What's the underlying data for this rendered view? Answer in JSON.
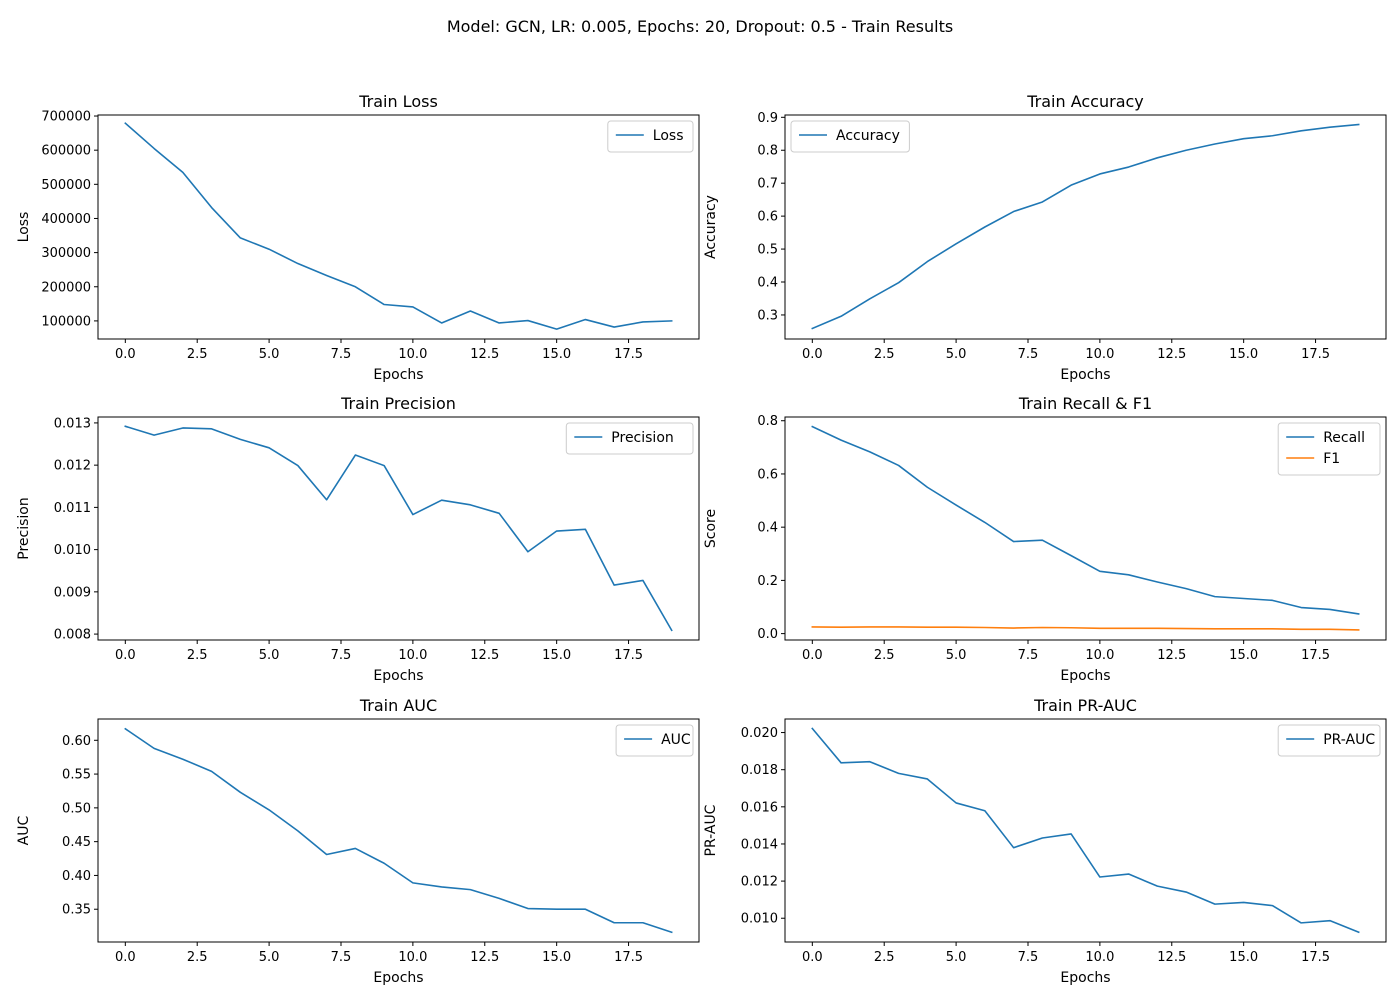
{
  "figure": {
    "title": "Model: GCN, LR: 0.005, Epochs: 20, Dropout: 0.5 - Train Results"
  },
  "colors": {
    "series_blue": "#1f77b4",
    "series_orange": "#ff7f0e",
    "axes": "#000000",
    "legend_border": "#cccccc"
  },
  "chart_data": [
    {
      "type": "line",
      "title": "Train Loss",
      "xlabel": "Epochs",
      "ylabel": "Loss",
      "xlim": [
        -0.95,
        19.95
      ],
      "ylim": [
        47000,
        703000
      ],
      "xticks": [
        0,
        2.5,
        5,
        7.5,
        10,
        12.5,
        15,
        17.5
      ],
      "xtick_labels": [
        "0.0",
        "2.5",
        "5.0",
        "7.5",
        "10.0",
        "12.5",
        "15.0",
        "17.5"
      ],
      "yticks": [
        100000,
        200000,
        300000,
        400000,
        500000,
        600000,
        700000
      ],
      "ytick_labels": [
        "100000",
        "200000",
        "300000",
        "400000",
        "500000",
        "600000",
        "700000"
      ],
      "grid": false,
      "legend": "upper right",
      "x": [
        0,
        1,
        2,
        3,
        4,
        5,
        6,
        7,
        8,
        9,
        10,
        11,
        12,
        13,
        14,
        15,
        16,
        17,
        18,
        19
      ],
      "series": [
        {
          "name": "Loss",
          "color": "#1f77b4",
          "values": [
            679000,
            605000,
            535000,
            432000,
            343000,
            310000,
            268000,
            233000,
            200000,
            148000,
            141000,
            94000,
            129000,
            94000,
            101000,
            76000,
            104000,
            82000,
            97000,
            100000
          ]
        }
      ]
    },
    {
      "type": "line",
      "title": "Train Accuracy",
      "xlabel": "Epochs",
      "ylabel": "Accuracy",
      "xlim": [
        -0.95,
        19.95
      ],
      "ylim": [
        0.227,
        0.907
      ],
      "xticks": [
        0,
        2.5,
        5,
        7.5,
        10,
        12.5,
        15,
        17.5
      ],
      "xtick_labels": [
        "0.0",
        "2.5",
        "5.0",
        "7.5",
        "10.0",
        "12.5",
        "15.0",
        "17.5"
      ],
      "yticks": [
        0.3,
        0.4,
        0.5,
        0.6,
        0.7,
        0.8,
        0.9
      ],
      "ytick_labels": [
        "0.3",
        "0.4",
        "0.5",
        "0.6",
        "0.7",
        "0.8",
        "0.9"
      ],
      "grid": false,
      "legend": "upper left",
      "x": [
        0,
        1,
        2,
        3,
        4,
        5,
        6,
        7,
        8,
        9,
        10,
        11,
        12,
        13,
        14,
        15,
        16,
        17,
        18,
        19
      ],
      "series": [
        {
          "name": "Accuracy",
          "color": "#1f77b4",
          "values": [
            0.259,
            0.296,
            0.349,
            0.398,
            0.462,
            0.516,
            0.567,
            0.614,
            0.643,
            0.694,
            0.728,
            0.749,
            0.777,
            0.8,
            0.819,
            0.835,
            0.844,
            0.859,
            0.87,
            0.878
          ]
        }
      ]
    },
    {
      "type": "line",
      "title": "Train Precision",
      "xlabel": "Epochs",
      "ylabel": "Precision",
      "xlim": [
        -0.95,
        19.95
      ],
      "ylim": [
        0.00786,
        0.01314
      ],
      "xticks": [
        0,
        2.5,
        5,
        7.5,
        10,
        12.5,
        15,
        17.5
      ],
      "xtick_labels": [
        "0.0",
        "2.5",
        "5.0",
        "7.5",
        "10.0",
        "12.5",
        "15.0",
        "17.5"
      ],
      "yticks": [
        0.008,
        0.009,
        0.01,
        0.011,
        0.012,
        0.013
      ],
      "ytick_labels": [
        "0.008",
        "0.009",
        "0.010",
        "0.011",
        "0.012",
        "0.013"
      ],
      "grid": false,
      "legend": "upper right",
      "x": [
        0,
        1,
        2,
        3,
        4,
        5,
        6,
        7,
        8,
        9,
        10,
        11,
        12,
        13,
        14,
        15,
        16,
        17,
        18,
        19
      ],
      "series": [
        {
          "name": "Precision",
          "color": "#1f77b4",
          "values": [
            0.01292,
            0.01271,
            0.01288,
            0.01286,
            0.01261,
            0.01241,
            0.01199,
            0.01118,
            0.01224,
            0.01199,
            0.01083,
            0.01117,
            0.01106,
            0.01086,
            0.00995,
            0.01044,
            0.01048,
            0.00916,
            0.00927,
            0.00809
          ]
        }
      ]
    },
    {
      "type": "line",
      "title": "Train Recall & F1",
      "xlabel": "Epochs",
      "ylabel": "Score",
      "xlim": [
        -0.95,
        19.95
      ],
      "ylim": [
        -0.024,
        0.814
      ],
      "xticks": [
        0,
        2.5,
        5,
        7.5,
        10,
        12.5,
        15,
        17.5
      ],
      "xtick_labels": [
        "0.0",
        "2.5",
        "5.0",
        "7.5",
        "10.0",
        "12.5",
        "15.0",
        "17.5"
      ],
      "yticks": [
        0.0,
        0.2,
        0.4,
        0.6,
        0.8
      ],
      "ytick_labels": [
        "0.0",
        "0.2",
        "0.4",
        "0.6",
        "0.8"
      ],
      "grid": false,
      "legend": "upper right",
      "x": [
        0,
        1,
        2,
        3,
        4,
        5,
        6,
        7,
        8,
        9,
        10,
        11,
        12,
        13,
        14,
        15,
        16,
        17,
        18,
        19
      ],
      "series": [
        {
          "name": "Recall",
          "color": "#1f77b4",
          "values": [
            0.778,
            0.727,
            0.683,
            0.632,
            0.55,
            0.483,
            0.418,
            0.346,
            0.351,
            0.293,
            0.234,
            0.221,
            0.194,
            0.169,
            0.139,
            0.132,
            0.125,
            0.098,
            0.091,
            0.074
          ]
        },
        {
          "name": "F1",
          "color": "#ff7f0e",
          "values": [
            0.025,
            0.024,
            0.025,
            0.025,
            0.024,
            0.024,
            0.023,
            0.021,
            0.023,
            0.022,
            0.02,
            0.02,
            0.02,
            0.019,
            0.018,
            0.018,
            0.018,
            0.016,
            0.016,
            0.014
          ]
        }
      ]
    },
    {
      "type": "line",
      "title": "Train AUC",
      "xlabel": "Epochs",
      "ylabel": "AUC",
      "xlim": [
        -0.95,
        19.95
      ],
      "ylim": [
        0.3015,
        0.6315
      ],
      "xticks": [
        0,
        2.5,
        5,
        7.5,
        10,
        12.5,
        15,
        17.5
      ],
      "xtick_labels": [
        "0.0",
        "2.5",
        "5.0",
        "7.5",
        "10.0",
        "12.5",
        "15.0",
        "17.5"
      ],
      "yticks": [
        0.35,
        0.4,
        0.45,
        0.5,
        0.55,
        0.6
      ],
      "ytick_labels": [
        "0.35",
        "0.40",
        "0.45",
        "0.50",
        "0.55",
        "0.60"
      ],
      "grid": false,
      "legend": "upper right",
      "x": [
        0,
        1,
        2,
        3,
        4,
        5,
        6,
        7,
        8,
        9,
        10,
        11,
        12,
        13,
        14,
        15,
        16,
        17,
        18,
        19
      ],
      "series": [
        {
          "name": "AUC",
          "color": "#1f77b4",
          "values": [
            0.617,
            0.588,
            0.572,
            0.554,
            0.523,
            0.497,
            0.466,
            0.431,
            0.44,
            0.418,
            0.389,
            0.383,
            0.379,
            0.366,
            0.351,
            0.35,
            0.35,
            0.33,
            0.33,
            0.316
          ]
        }
      ]
    },
    {
      "type": "line",
      "title": "Train PR-AUC",
      "xlabel": "Epochs",
      "ylabel": "PR-AUC",
      "xlim": [
        -0.95,
        19.95
      ],
      "ylim": [
        0.00872,
        0.02073
      ],
      "xticks": [
        0,
        2.5,
        5,
        7.5,
        10,
        12.5,
        15,
        17.5
      ],
      "xtick_labels": [
        "0.0",
        "2.5",
        "5.0",
        "7.5",
        "10.0",
        "12.5",
        "15.0",
        "17.5"
      ],
      "yticks": [
        0.01,
        0.012,
        0.014,
        0.016,
        0.018,
        0.02
      ],
      "ytick_labels": [
        "0.010",
        "0.012",
        "0.014",
        "0.016",
        "0.018",
        "0.020"
      ],
      "grid": false,
      "legend": "upper right",
      "x": [
        0,
        1,
        2,
        3,
        4,
        5,
        6,
        7,
        8,
        9,
        10,
        11,
        12,
        13,
        14,
        15,
        16,
        17,
        18,
        19
      ],
      "series": [
        {
          "name": "PR-AUC",
          "color": "#1f77b4",
          "values": [
            0.02022,
            0.01837,
            0.01843,
            0.0178,
            0.0175,
            0.01621,
            0.01579,
            0.0138,
            0.01432,
            0.01454,
            0.01222,
            0.01238,
            0.01173,
            0.01141,
            0.01076,
            0.01085,
            0.01068,
            0.00975,
            0.00987,
            0.00925
          ]
        }
      ]
    }
  ]
}
